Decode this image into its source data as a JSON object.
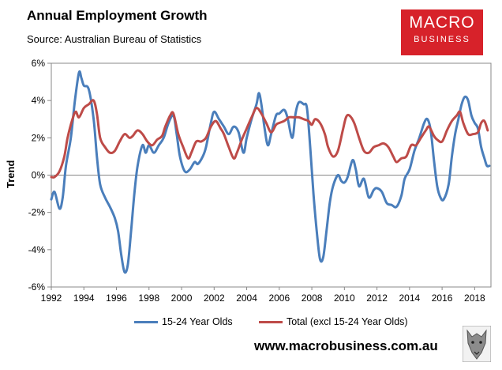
{
  "header": {
    "title": "Annual Employment Growth",
    "subtitle": "Source: Australian Bureau of Statistics"
  },
  "logo": {
    "line1": "MACRO",
    "line2": "BUSINESS"
  },
  "footer": {
    "website": "www.macrobusiness.com.au"
  },
  "colors": {
    "youth": "#4a7ebb",
    "total": "#be4b48",
    "brand": "#d7222a",
    "grid": "#888888"
  },
  "chart_data": {
    "type": "line",
    "ylabel": "Trend",
    "ylim": [
      -6,
      6
    ],
    "xlim": [
      1992,
      2019
    ],
    "yticks": [
      -6,
      -4,
      -2,
      0,
      2,
      4,
      6
    ],
    "ytick_labels": [
      "-6%",
      "-4%",
      "-2%",
      "0%",
      "2%",
      "4%",
      "6%"
    ],
    "xticks": [
      1992,
      1994,
      1996,
      1998,
      2000,
      2002,
      2004,
      2006,
      2008,
      2010,
      2012,
      2014,
      2016,
      2018
    ],
    "xtick_labels": [
      "1992",
      "1994",
      "1996",
      "1998",
      "2000",
      "2002",
      "2004",
      "2006",
      "2008",
      "2010",
      "2012",
      "2014",
      "2016",
      "2018"
    ],
    "grid": false,
    "legend_position": "bottom",
    "series": [
      {
        "name": "15-24 Year Olds",
        "color": "#4a7ebb",
        "points": [
          [
            1992.0,
            -1.3
          ],
          [
            1992.2,
            -0.9
          ],
          [
            1992.5,
            -1.8
          ],
          [
            1992.7,
            -1.2
          ],
          [
            1992.9,
            0.5
          ],
          [
            1993.2,
            2.0
          ],
          [
            1993.45,
            4.0
          ],
          [
            1993.7,
            5.5
          ],
          [
            1993.85,
            5.2
          ],
          [
            1994.0,
            4.8
          ],
          [
            1994.3,
            4.6
          ],
          [
            1994.6,
            3.0
          ],
          [
            1994.8,
            1.0
          ],
          [
            1995.0,
            -0.5
          ],
          [
            1995.3,
            -1.2
          ],
          [
            1995.6,
            -1.7
          ],
          [
            1995.9,
            -2.3
          ],
          [
            1996.1,
            -3.0
          ],
          [
            1996.3,
            -4.3
          ],
          [
            1996.5,
            -5.2
          ],
          [
            1996.7,
            -4.8
          ],
          [
            1996.9,
            -3.0
          ],
          [
            1997.1,
            -1.0
          ],
          [
            1997.3,
            0.5
          ],
          [
            1997.6,
            1.6
          ],
          [
            1997.8,
            1.2
          ],
          [
            1998.0,
            1.6
          ],
          [
            1998.3,
            1.2
          ],
          [
            1998.6,
            1.6
          ],
          [
            1998.9,
            2.0
          ],
          [
            1999.2,
            2.8
          ],
          [
            1999.5,
            3.2
          ],
          [
            1999.7,
            2.2
          ],
          [
            1999.9,
            1.0
          ],
          [
            2000.2,
            0.2
          ],
          [
            2000.5,
            0.3
          ],
          [
            2000.8,
            0.7
          ],
          [
            2001.0,
            0.6
          ],
          [
            2001.3,
            1.0
          ],
          [
            2001.5,
            1.5
          ],
          [
            2001.8,
            2.8
          ],
          [
            2002.0,
            3.4
          ],
          [
            2002.3,
            3.0
          ],
          [
            2002.6,
            2.6
          ],
          [
            2002.9,
            2.2
          ],
          [
            2003.2,
            2.6
          ],
          [
            2003.5,
            2.3
          ],
          [
            2003.8,
            1.2
          ],
          [
            2004.0,
            2.0
          ],
          [
            2004.3,
            3.0
          ],
          [
            2004.6,
            3.8
          ],
          [
            2004.75,
            4.4
          ],
          [
            2004.9,
            3.8
          ],
          [
            2005.1,
            2.5
          ],
          [
            2005.3,
            1.6
          ],
          [
            2005.5,
            2.2
          ],
          [
            2005.8,
            3.2
          ],
          [
            2006.0,
            3.3
          ],
          [
            2006.3,
            3.5
          ],
          [
            2006.5,
            3.1
          ],
          [
            2006.8,
            2.0
          ],
          [
            2007.0,
            3.3
          ],
          [
            2007.2,
            3.9
          ],
          [
            2007.5,
            3.8
          ],
          [
            2007.7,
            3.6
          ],
          [
            2007.9,
            1.5
          ],
          [
            2008.1,
            -1.0
          ],
          [
            2008.3,
            -3.0
          ],
          [
            2008.5,
            -4.5
          ],
          [
            2008.7,
            -4.4
          ],
          [
            2008.9,
            -3.0
          ],
          [
            2009.1,
            -1.5
          ],
          [
            2009.3,
            -0.6
          ],
          [
            2009.6,
            0.0
          ],
          [
            2009.8,
            -0.3
          ],
          [
            2010.0,
            -0.4
          ],
          [
            2010.2,
            -0.1
          ],
          [
            2010.5,
            0.8
          ],
          [
            2010.7,
            0.3
          ],
          [
            2010.9,
            -0.6
          ],
          [
            2011.2,
            -0.2
          ],
          [
            2011.5,
            -1.2
          ],
          [
            2011.8,
            -0.8
          ],
          [
            2012.0,
            -0.7
          ],
          [
            2012.3,
            -0.9
          ],
          [
            2012.6,
            -1.5
          ],
          [
            2012.9,
            -1.6
          ],
          [
            2013.2,
            -1.7
          ],
          [
            2013.5,
            -1.1
          ],
          [
            2013.7,
            -0.2
          ],
          [
            2014.0,
            0.3
          ],
          [
            2014.3,
            1.3
          ],
          [
            2014.6,
            2.0
          ],
          [
            2014.9,
            2.8
          ],
          [
            2015.1,
            3.0
          ],
          [
            2015.3,
            2.4
          ],
          [
            2015.5,
            0.8
          ],
          [
            2015.7,
            -0.6
          ],
          [
            2015.9,
            -1.2
          ],
          [
            2016.1,
            -1.3
          ],
          [
            2016.4,
            -0.5
          ],
          [
            2016.6,
            1.0
          ],
          [
            2016.8,
            2.2
          ],
          [
            2017.0,
            3.0
          ],
          [
            2017.2,
            3.8
          ],
          [
            2017.4,
            4.2
          ],
          [
            2017.6,
            4.0
          ],
          [
            2017.8,
            3.2
          ],
          [
            2018.0,
            2.8
          ],
          [
            2018.2,
            2.5
          ],
          [
            2018.4,
            1.5
          ],
          [
            2018.6,
            0.9
          ],
          [
            2018.75,
            0.5
          ],
          [
            2018.9,
            0.5
          ]
        ]
      },
      {
        "name": "Total (excl 15-24 Year Olds)",
        "color": "#be4b48",
        "points": [
          [
            1992.0,
            -0.1
          ],
          [
            1992.2,
            -0.1
          ],
          [
            1992.5,
            0.2
          ],
          [
            1992.8,
            1.0
          ],
          [
            1993.0,
            2.0
          ],
          [
            1993.3,
            3.0
          ],
          [
            1993.5,
            3.4
          ],
          [
            1993.7,
            3.1
          ],
          [
            1994.0,
            3.6
          ],
          [
            1994.3,
            3.8
          ],
          [
            1994.6,
            4.0
          ],
          [
            1994.8,
            3.3
          ],
          [
            1995.0,
            2.0
          ],
          [
            1995.3,
            1.5
          ],
          [
            1995.6,
            1.2
          ],
          [
            1995.9,
            1.3
          ],
          [
            1996.2,
            1.8
          ],
          [
            1996.5,
            2.2
          ],
          [
            1996.8,
            2.0
          ],
          [
            1997.0,
            2.1
          ],
          [
            1997.3,
            2.4
          ],
          [
            1997.6,
            2.2
          ],
          [
            1997.9,
            1.8
          ],
          [
            1998.2,
            1.6
          ],
          [
            1998.5,
            1.9
          ],
          [
            1998.8,
            2.1
          ],
          [
            1999.0,
            2.6
          ],
          [
            1999.3,
            3.2
          ],
          [
            1999.5,
            3.3
          ],
          [
            1999.8,
            2.2
          ],
          [
            2000.1,
            1.5
          ],
          [
            2000.4,
            0.9
          ],
          [
            2000.6,
            1.2
          ],
          [
            2000.9,
            1.8
          ],
          [
            2001.2,
            1.8
          ],
          [
            2001.5,
            2.0
          ],
          [
            2001.8,
            2.6
          ],
          [
            2002.1,
            2.9
          ],
          [
            2002.4,
            2.5
          ],
          [
            2002.6,
            2.2
          ],
          [
            2002.9,
            1.5
          ],
          [
            2003.2,
            0.9
          ],
          [
            2003.4,
            1.2
          ],
          [
            2003.7,
            1.9
          ],
          [
            2004.0,
            2.5
          ],
          [
            2004.3,
            3.1
          ],
          [
            2004.6,
            3.6
          ],
          [
            2004.9,
            3.3
          ],
          [
            2005.2,
            2.8
          ],
          [
            2005.5,
            2.3
          ],
          [
            2005.8,
            2.7
          ],
          [
            2006.0,
            2.8
          ],
          [
            2006.3,
            2.9
          ],
          [
            2006.6,
            3.1
          ],
          [
            2006.9,
            3.1
          ],
          [
            2007.2,
            3.1
          ],
          [
            2007.5,
            3.0
          ],
          [
            2007.8,
            2.9
          ],
          [
            2008.0,
            2.7
          ],
          [
            2008.2,
            3.0
          ],
          [
            2008.5,
            2.8
          ],
          [
            2008.8,
            2.2
          ],
          [
            2009.0,
            1.5
          ],
          [
            2009.3,
            1.0
          ],
          [
            2009.6,
            1.3
          ],
          [
            2009.9,
            2.4
          ],
          [
            2010.1,
            3.1
          ],
          [
            2010.3,
            3.2
          ],
          [
            2010.6,
            2.8
          ],
          [
            2010.9,
            2.0
          ],
          [
            2011.2,
            1.3
          ],
          [
            2011.5,
            1.2
          ],
          [
            2011.8,
            1.5
          ],
          [
            2012.1,
            1.6
          ],
          [
            2012.4,
            1.7
          ],
          [
            2012.7,
            1.5
          ],
          [
            2013.0,
            1.0
          ],
          [
            2013.2,
            0.7
          ],
          [
            2013.5,
            0.9
          ],
          [
            2013.8,
            1.0
          ],
          [
            2014.1,
            1.6
          ],
          [
            2014.4,
            1.6
          ],
          [
            2014.7,
            2.0
          ],
          [
            2015.0,
            2.4
          ],
          [
            2015.2,
            2.6
          ],
          [
            2015.5,
            2.1
          ],
          [
            2015.7,
            1.9
          ],
          [
            2016.0,
            1.8
          ],
          [
            2016.3,
            2.4
          ],
          [
            2016.6,
            2.9
          ],
          [
            2016.9,
            3.2
          ],
          [
            2017.1,
            3.4
          ],
          [
            2017.3,
            2.8
          ],
          [
            2017.6,
            2.2
          ],
          [
            2017.9,
            2.2
          ],
          [
            2018.2,
            2.3
          ],
          [
            2018.4,
            2.8
          ],
          [
            2018.6,
            2.9
          ],
          [
            2018.8,
            2.4
          ]
        ]
      }
    ]
  }
}
